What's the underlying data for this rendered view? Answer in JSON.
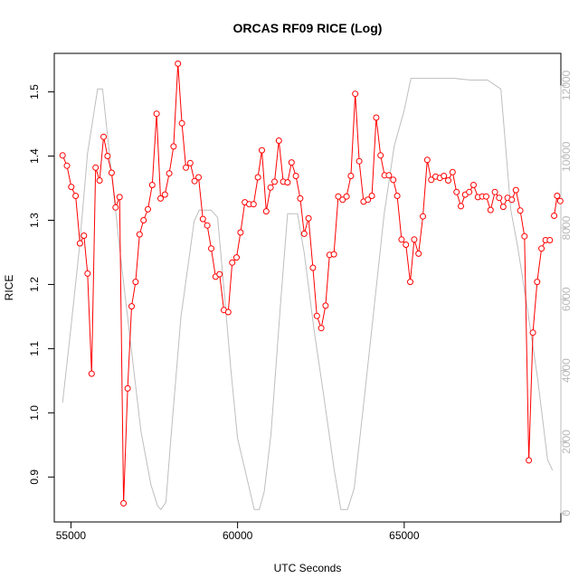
{
  "chart_data": {
    "type": "line",
    "title": "ORCAS RF09 RICE (Log)",
    "xlabel": "UTC Seconds",
    "ylabel": "RICE",
    "xlim": [
      54500,
      69700
    ],
    "ylim": [
      0.83,
      1.56
    ],
    "y2lim": [
      -250,
      12900
    ],
    "xticks": [
      "55000",
      "60000",
      "65000"
    ],
    "yticks": [
      "0.9",
      "1.0",
      "1.1",
      "1.2",
      "1.3",
      "1.4",
      "1.5"
    ],
    "y2ticks": [
      "0",
      "2000",
      "4000",
      "6000",
      "8000",
      "10000",
      "12000"
    ],
    "grid": false,
    "colors": {
      "rice": "#ff0000",
      "altitude": "#bebebe",
      "axis": "#000000"
    },
    "series": [
      {
        "axis": "left",
        "style": "line+points",
        "color": "#ff0000",
        "x": [
          54750,
          54880,
          55010,
          55140,
          55270,
          55390,
          55500,
          55620,
          55740,
          55860,
          55980,
          56100,
          56220,
          56340,
          56460,
          56580,
          56700,
          56820,
          56940,
          57060,
          57180,
          57310,
          57440,
          57570,
          57690,
          57820,
          57950,
          58080,
          58210,
          58330,
          58450,
          58580,
          58710,
          58830,
          58960,
          59090,
          59210,
          59340,
          59460,
          59590,
          59720,
          59840,
          59970,
          60090,
          60220,
          60350,
          60480,
          60610,
          60730,
          60860,
          60990,
          61110,
          61240,
          61370,
          61500,
          61620,
          61750,
          61880,
          62000,
          62130,
          62260,
          62380,
          62510,
          62640,
          62760,
          62890,
          63020,
          63150,
          63270,
          63400,
          63530,
          63650,
          63780,
          63910,
          64030,
          64160,
          64290,
          64410,
          64540,
          64670,
          64790,
          64920,
          65050,
          65180,
          65300,
          65430,
          65560,
          65690,
          65810,
          65940,
          66070,
          66190,
          66320,
          66450,
          66570,
          66700,
          66830,
          66950,
          67080,
          67210,
          67340,
          67460,
          67590,
          67720,
          67850,
          67970,
          68100,
          68230,
          68350,
          68480,
          68610,
          68740,
          68860,
          68990,
          69120,
          69240,
          69370
        ],
        "values": [
          1.401,
          1.385,
          1.352,
          1.338,
          1.264,
          1.276,
          1.217,
          1.061,
          1.382,
          1.362,
          1.43,
          1.4,
          1.374,
          1.32,
          1.336,
          0.859,
          1.038,
          1.166,
          1.204,
          1.278,
          1.3,
          1.317,
          1.355,
          1.466,
          1.334,
          1.34,
          1.373,
          1.415,
          1.544,
          1.451,
          1.382,
          1.389,
          1.361,
          1.367,
          1.302,
          1.292,
          1.256,
          1.212,
          1.216,
          1.16,
          1.157,
          1.234,
          1.242,
          1.281,
          1.328,
          1.325,
          1.325,
          1.367,
          1.409,
          1.314,
          1.351,
          1.36,
          1.424,
          1.36,
          1.359,
          1.39,
          1.369,
          1.334,
          1.279,
          1.303,
          1.226,
          1.151,
          1.132,
          1.167,
          1.246,
          1.247,
          1.337,
          1.332,
          1.337,
          1.369,
          1.497,
          1.392,
          1.329,
          1.332,
          1.338,
          1.46,
          1.401,
          1.37,
          1.37,
          1.363,
          1.338,
          1.27,
          1.262,
          1.204,
          1.27,
          1.248,
          1.306,
          1.394,
          1.363,
          1.368,
          1.366,
          1.369,
          1.362,
          1.375,
          1.344,
          1.322,
          1.34,
          1.344,
          1.355,
          1.336,
          1.337,
          1.337,
          1.316,
          1.344,
          1.335,
          1.321,
          1.335,
          1.332,
          1.347,
          1.315,
          1.275,
          0.926,
          1.125,
          1.204,
          1.256,
          1.269,
          1.269
        ]
      },
      {
        "axis": "left",
        "style": "line+points",
        "color": "#ff0000",
        "x": [
          69500,
          69590,
          69680
        ],
        "values": [
          1.307,
          1.338,
          1.33
        ]
      },
      {
        "axis": "right",
        "style": "line",
        "color": "#bebebe",
        "x": [
          54750,
          55000,
          55250,
          55500,
          55800,
          55950,
          56200,
          56500,
          56800,
          57100,
          57400,
          57600,
          57700,
          57850,
          58000,
          58300,
          58700,
          58850,
          59000,
          59200,
          59400,
          59600,
          59800,
          60000,
          60300,
          60500,
          60650,
          60800,
          61000,
          61300,
          61500,
          61800,
          62000,
          62300,
          62600,
          62900,
          63100,
          63300,
          63500,
          63800,
          64100,
          64400,
          64700,
          65000,
          65200,
          65500,
          66000,
          66500,
          67000,
          67500,
          67900,
          68200,
          68400,
          68700,
          69000,
          69300,
          69450
        ],
        "values": [
          3100,
          5200,
          7400,
          10100,
          11900,
          11900,
          9700,
          7100,
          4700,
          2300,
          800,
          200,
          100,
          300,
          2100,
          5500,
          8200,
          8500,
          8500,
          8500,
          8300,
          6200,
          4000,
          2100,
          900,
          100,
          100,
          600,
          2200,
          6000,
          8400,
          8400,
          7300,
          5100,
          3200,
          1200,
          100,
          100,
          700,
          3200,
          5800,
          8400,
          10300,
          11300,
          12200,
          12200,
          12200,
          12200,
          12150,
          12150,
          11900,
          8500,
          7500,
          5700,
          3800,
          1500,
          1200
        ]
      }
    ]
  }
}
